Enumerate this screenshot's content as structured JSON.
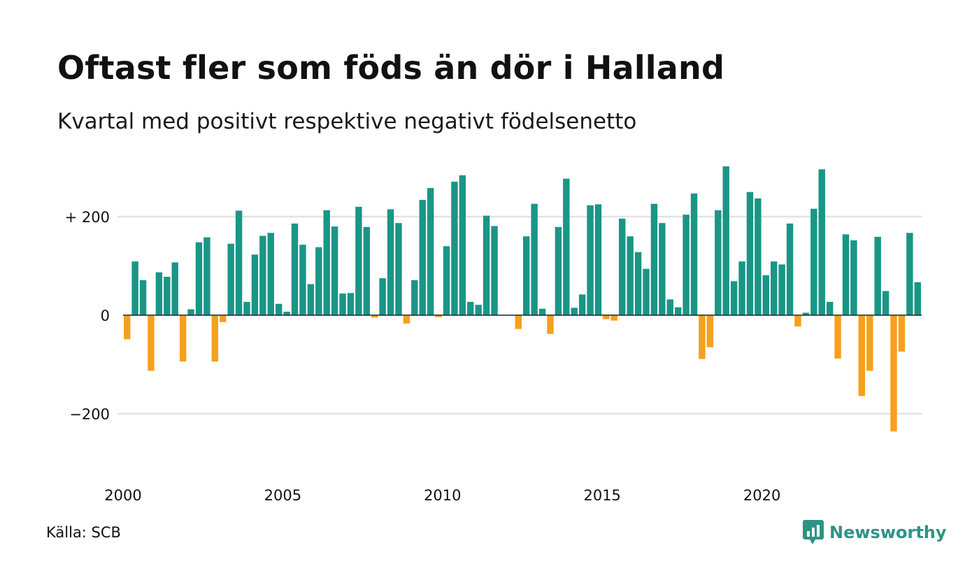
{
  "title": "Oftast fler som föds än dör i Halland",
  "subtitle": "Kvartal med positivt respektive negativt födelsenetto",
  "source": "Källa: SCB",
  "brand": {
    "name": "Newsworthy",
    "icon": "newsworthy-logo-icon"
  },
  "colors": {
    "positive": "#1a9686",
    "negative": "#f5a01e",
    "grid": "#e3e3e3",
    "axis": "#222222"
  },
  "chart_data": {
    "type": "bar",
    "title": "Oftast fler som föds än dör i Halland",
    "subtitle": "Kvartal med positivt respektive negativt födelsenetto",
    "xlabel": "",
    "ylabel": "",
    "ylim": [
      -300,
      300
    ],
    "yticks": [
      {
        "value": 200,
        "label": "+ 200"
      },
      {
        "value": 0,
        "label": "0"
      },
      {
        "value": -200,
        "label": "−200"
      }
    ],
    "xticks": [
      {
        "value": 2000,
        "label": "2000"
      },
      {
        "value": 2005,
        "label": "2005"
      },
      {
        "value": 2010,
        "label": "2010"
      },
      {
        "value": 2015,
        "label": "2015"
      },
      {
        "value": 2020,
        "label": "2020"
      }
    ],
    "grid": true,
    "start": "2000 Q1",
    "frequency": "quarterly",
    "values": [
      -49,
      109,
      71,
      -113,
      87,
      78,
      107,
      -94,
      12,
      148,
      158,
      -94,
      -14,
      145,
      212,
      27,
      123,
      161,
      167,
      23,
      7,
      186,
      143,
      63,
      138,
      213,
      180,
      44,
      45,
      220,
      179,
      -5,
      75,
      215,
      187,
      -17,
      71,
      234,
      258,
      -4,
      140,
      271,
      284,
      27,
      21,
      202,
      181,
      0,
      0,
      -28,
      160,
      226,
      13,
      -38,
      179,
      277,
      15,
      42,
      223,
      225,
      -8,
      -11,
      196,
      160,
      128,
      94,
      226,
      187,
      32,
      16,
      204,
      247,
      -89,
      -65,
      213,
      302,
      69,
      109,
      250,
      237,
      81,
      109,
      103,
      186,
      -23,
      5,
      216,
      296,
      27,
      -88,
      164,
      152,
      -164,
      -113,
      159,
      49,
      -236,
      -74,
      167,
      67
    ]
  }
}
